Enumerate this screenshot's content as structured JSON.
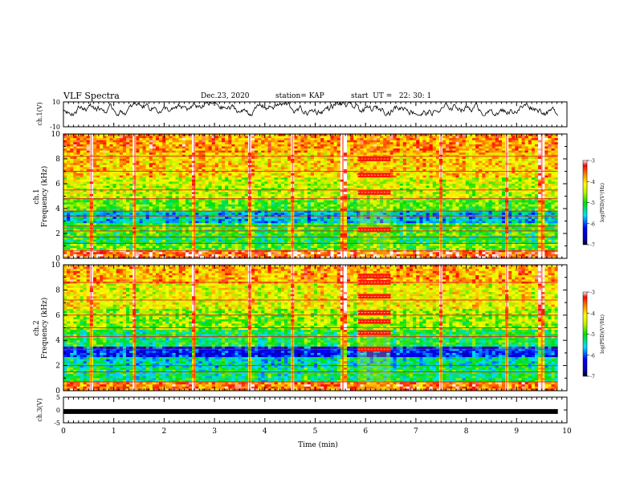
{
  "header": {
    "title": "VLF Spectra",
    "date": "Dec.23, 2020",
    "station": "station= KAP",
    "start": "start  UT =   22: 30: 1"
  },
  "chart_data": [
    {
      "type": "line",
      "panel": "ch1-waveform",
      "ylabel": "ch.1(V)",
      "xlim": [
        0,
        10
      ],
      "xmax_data": 9.82,
      "ylim": [
        -10,
        10
      ],
      "yticks": [
        10,
        -10
      ],
      "trace": "fluctuating waveform mostly between 0 and 9 V"
    },
    {
      "type": "heatmap",
      "panel": "ch1-spectrogram",
      "ylabel": "ch.1\nFrequency (kHz)",
      "ylim": [
        0,
        10
      ],
      "yticks": [
        0,
        2,
        4,
        6,
        8,
        10
      ],
      "xlim": [
        0,
        10
      ],
      "xmax_data": 9.82,
      "colorbar": {
        "label": "log(PSD)(V²/Hz)",
        "min": -7,
        "max": -3,
        "ticks": [
          -3,
          -4,
          -5,
          -6,
          -7
        ]
      },
      "bands": [
        {
          "f_low": 0,
          "f_high": 0.6,
          "level": -3.4
        },
        {
          "f_low": 0.6,
          "f_high": 1.2,
          "level": -4.8
        },
        {
          "f_low": 1.2,
          "f_high": 1.9,
          "level": -5.1
        },
        {
          "f_low": 1.9,
          "f_high": 2.8,
          "level": -4.9
        },
        {
          "f_low": 2.8,
          "f_high": 3.8,
          "level": -5.6
        },
        {
          "f_low": 3.8,
          "f_high": 4.9,
          "level": -4.8
        },
        {
          "f_low": 4.9,
          "f_high": 6.5,
          "level": -4.4
        },
        {
          "f_low": 6.5,
          "f_high": 8.5,
          "level": -4.0
        },
        {
          "f_low": 8.5,
          "f_high": 10,
          "level": -3.7
        }
      ],
      "lines_khz": [
        0.6,
        1.2,
        1.7,
        2.2,
        2.6,
        3.4,
        3.8,
        4.8,
        5.5,
        7.0,
        8.2
      ],
      "burst": {
        "t_start": 5.85,
        "t_end": 6.5,
        "freqs_khz": [
          2.3,
          5.3,
          6.7,
          8.0
        ]
      },
      "vertical_streaks_min": [
        0.55,
        1.42,
        2.6,
        3.7,
        4.55,
        5.55,
        7.5,
        8.8,
        9.5
      ]
    },
    {
      "type": "heatmap",
      "panel": "ch2-spectrogram",
      "ylabel": "ch.2\nFrequency (kHz)",
      "ylim": [
        0,
        10
      ],
      "yticks": [
        0,
        2,
        4,
        6,
        8,
        10
      ],
      "xlim": [
        0,
        10
      ],
      "xmax_data": 9.82,
      "colorbar": {
        "label": "log(PSD)(V²/Hz)",
        "min": -7,
        "max": -3,
        "ticks": [
          -3,
          -4,
          -5,
          -6,
          -7
        ]
      },
      "bands": [
        {
          "f_low": 0,
          "f_high": 0.6,
          "level": -3.6
        },
        {
          "f_low": 0.6,
          "f_high": 1.8,
          "level": -5.2
        },
        {
          "f_low": 1.8,
          "f_high": 2.6,
          "level": -5.4
        },
        {
          "f_low": 2.6,
          "f_high": 3.5,
          "level": -6.2
        },
        {
          "f_low": 3.5,
          "f_high": 4.9,
          "level": -5.1
        },
        {
          "f_low": 4.9,
          "f_high": 6.5,
          "level": -4.6
        },
        {
          "f_low": 6.5,
          "f_high": 8.5,
          "level": -4.2
        },
        {
          "f_low": 8.5,
          "f_high": 10,
          "level": -3.8
        }
      ],
      "lines_khz": [
        0.7,
        1.5,
        2.0,
        3.3,
        4.3,
        5.0,
        6.0,
        7.2,
        8.6
      ],
      "burst": {
        "t_start": 5.85,
        "t_end": 6.5,
        "freqs_khz": [
          3.3,
          4.6,
          5.5,
          6.2,
          7.5,
          8.6,
          9.1
        ]
      },
      "vertical_streaks_min": [
        0.55,
        1.42,
        2.6,
        3.7,
        4.55,
        5.55,
        7.5,
        8.8,
        9.5
      ]
    },
    {
      "type": "line",
      "panel": "ch3-waveform",
      "ylabel": "ch.3(V)",
      "xlabel": "Time  (min)",
      "xlim": [
        0,
        10
      ],
      "xmax_data": 9.82,
      "xticks": [
        0,
        1,
        2,
        3,
        4,
        5,
        6,
        7,
        8,
        9,
        10
      ],
      "ylim": [
        -5,
        5
      ],
      "yticks": [
        5,
        0,
        -5
      ],
      "level": -0.6
    }
  ]
}
